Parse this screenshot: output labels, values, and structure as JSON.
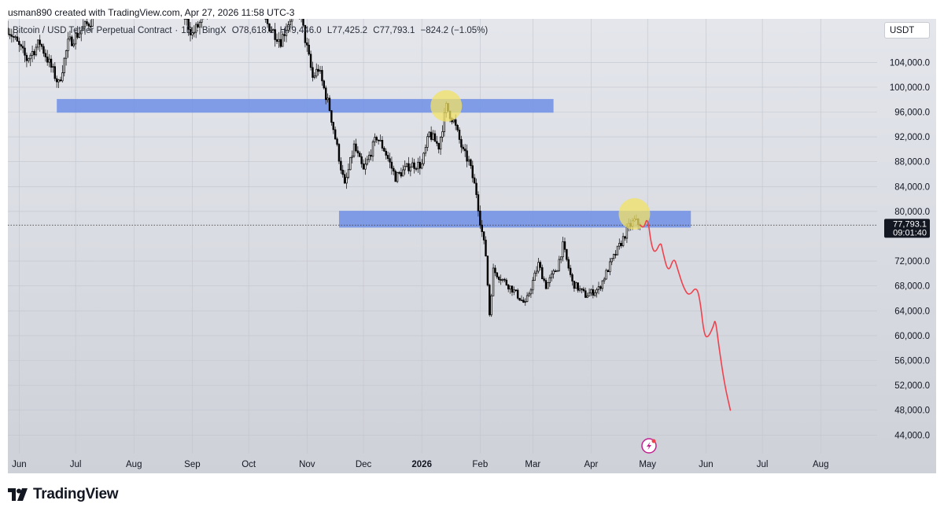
{
  "credit": "usman890 created with TradingView.com, Apr 27, 2026 11:58 UTC-3",
  "symbol": {
    "name": "Bitcoin / USD Tether Perpetual Contract",
    "interval": "1D",
    "exchange": "BingX",
    "open": "O78,618.1",
    "high": "H79,446.0",
    "low": "L77,425.2",
    "close": "C77,793.1",
    "change": "−824.2 (−1.05%)"
  },
  "unit_button": "USDT",
  "price_label": {
    "price": "77,793.1",
    "countdown": "09:01:40",
    "value": 77793.1
  },
  "logo_text": "TradingView",
  "colors": {
    "zone": "#6e8fe6",
    "highlight": "#f2e264",
    "forecast": "#f0424d",
    "candle_up": "#ffffff",
    "candle_down": "#000000",
    "wick": "#202020",
    "badge": "#131722"
  },
  "icons": {
    "alert": "lightning-bolt-icon",
    "logo": "tradingview-logo-icon"
  },
  "chart_data": {
    "type": "candlestick",
    "y_axis": {
      "ticks": [
        104000,
        100000,
        96000,
        92000,
        88000,
        84000,
        80000,
        72000,
        68000,
        64000,
        60000,
        56000,
        52000,
        48000,
        44000
      ],
      "tick_labels": [
        "104,000.0",
        "100,000.0",
        "96,000.0",
        "92,000.0",
        "88,000.0",
        "84,000.0",
        "80,000.0",
        "72,000.0",
        "68,000.0",
        "64,000.0",
        "60,000.0",
        "56,000.0",
        "52,000.0",
        "48,000.0",
        "44,000.0"
      ],
      "range": [
        41000,
        111000
      ]
    },
    "x_axis": {
      "range": [
        "2025-05-26",
        "2026-08-31"
      ],
      "ticks": [
        {
          "date": "2025-06-01",
          "label": "Jun",
          "bold": false
        },
        {
          "date": "2025-07-01",
          "label": "Jul",
          "bold": false
        },
        {
          "date": "2025-08-01",
          "label": "Aug",
          "bold": false
        },
        {
          "date": "2025-09-01",
          "label": "Sep",
          "bold": false
        },
        {
          "date": "2025-10-01",
          "label": "Oct",
          "bold": false
        },
        {
          "date": "2025-11-01",
          "label": "Nov",
          "bold": false
        },
        {
          "date": "2025-12-01",
          "label": "Dec",
          "bold": false
        },
        {
          "date": "2026-01-01",
          "label": "2026",
          "bold": true
        },
        {
          "date": "2026-02-01",
          "label": "Feb",
          "bold": false
        },
        {
          "date": "2026-03-01",
          "label": "Mar",
          "bold": false
        },
        {
          "date": "2026-04-01",
          "label": "Apr",
          "bold": false
        },
        {
          "date": "2026-05-01",
          "label": "May",
          "bold": false
        },
        {
          "date": "2026-06-01",
          "label": "Jun",
          "bold": false
        },
        {
          "date": "2026-07-01",
          "label": "Jul",
          "bold": false
        },
        {
          "date": "2026-08-01",
          "label": "Aug",
          "bold": false
        }
      ]
    },
    "zones": [
      {
        "from": "2025-06-21",
        "to": "2026-03-12",
        "low": 95900,
        "high": 98100
      },
      {
        "from": "2025-11-18",
        "to": "2026-05-24",
        "low": 77400,
        "high": 80100
      }
    ],
    "highlights": [
      {
        "date": "2026-01-14",
        "price": 97000
      },
      {
        "date": "2026-04-24",
        "price": 79600
      }
    ],
    "last_price_line": 77793.1,
    "close_path": [
      {
        "date": "2025-05-26",
        "price": 109500
      },
      {
        "date": "2025-06-05",
        "price": 104500
      },
      {
        "date": "2025-06-12",
        "price": 107200
      },
      {
        "date": "2025-06-22",
        "price": 100500
      },
      {
        "date": "2025-06-27",
        "price": 107000
      },
      {
        "date": "2025-07-10",
        "price": 111000
      },
      {
        "date": "2025-07-14",
        "price": 118000
      },
      {
        "date": "2025-08-14",
        "price": 121000
      },
      {
        "date": "2025-09-01",
        "price": 108500
      },
      {
        "date": "2025-09-18",
        "price": 116000
      },
      {
        "date": "2025-10-06",
        "price": 123500
      },
      {
        "date": "2025-10-10",
        "price": 110500
      },
      {
        "date": "2025-10-18",
        "price": 107500
      },
      {
        "date": "2025-10-27",
        "price": 114000
      },
      {
        "date": "2025-11-04",
        "price": 101500
      },
      {
        "date": "2025-11-07",
        "price": 103000
      },
      {
        "date": "2025-11-13",
        "price": 96500
      },
      {
        "date": "2025-11-21",
        "price": 84000
      },
      {
        "date": "2025-11-26",
        "price": 90500
      },
      {
        "date": "2025-12-01",
        "price": 86500
      },
      {
        "date": "2025-12-08",
        "price": 92000
      },
      {
        "date": "2025-12-12",
        "price": 90000
      },
      {
        "date": "2025-12-18",
        "price": 85500
      },
      {
        "date": "2025-12-26",
        "price": 87500
      },
      {
        "date": "2026-01-01",
        "price": 87500
      },
      {
        "date": "2026-01-05",
        "price": 92500
      },
      {
        "date": "2026-01-10",
        "price": 90500
      },
      {
        "date": "2026-01-14",
        "price": 96800
      },
      {
        "date": "2026-01-18",
        "price": 94500
      },
      {
        "date": "2026-01-23",
        "price": 89500
      },
      {
        "date": "2026-01-26",
        "price": 88000
      },
      {
        "date": "2026-01-30",
        "price": 83000
      },
      {
        "date": "2026-02-01",
        "price": 78500
      },
      {
        "date": "2026-02-04",
        "price": 73000
      },
      {
        "date": "2026-02-06",
        "price": 63500
      },
      {
        "date": "2026-02-08",
        "price": 70500
      },
      {
        "date": "2026-02-13",
        "price": 69000
      },
      {
        "date": "2026-02-18",
        "price": 67500
      },
      {
        "date": "2026-02-25",
        "price": 65000
      },
      {
        "date": "2026-03-04",
        "price": 71500
      },
      {
        "date": "2026-03-08",
        "price": 68000
      },
      {
        "date": "2026-03-14",
        "price": 71000
      },
      {
        "date": "2026-03-17",
        "price": 74500
      },
      {
        "date": "2026-03-22",
        "price": 68500
      },
      {
        "date": "2026-03-29",
        "price": 66500
      },
      {
        "date": "2026-04-05",
        "price": 67500
      },
      {
        "date": "2026-04-12",
        "price": 72000
      },
      {
        "date": "2026-04-17",
        "price": 75000
      },
      {
        "date": "2026-04-21",
        "price": 77500
      },
      {
        "date": "2026-04-24",
        "price": 78500
      },
      {
        "date": "2026-04-27",
        "price": 77793.1
      }
    ],
    "forecast_path": [
      {
        "date": "2026-04-27",
        "price": 77800
      },
      {
        "date": "2026-04-29",
        "price": 77300
      },
      {
        "date": "2026-05-01",
        "price": 79200
      },
      {
        "date": "2026-05-03",
        "price": 74500
      },
      {
        "date": "2026-05-05",
        "price": 73200
      },
      {
        "date": "2026-05-08",
        "price": 75200
      },
      {
        "date": "2026-05-09",
        "price": 73600
      },
      {
        "date": "2026-05-12",
        "price": 70000
      },
      {
        "date": "2026-05-15",
        "price": 72700
      },
      {
        "date": "2026-05-17",
        "price": 70700
      },
      {
        "date": "2026-05-20",
        "price": 67800
      },
      {
        "date": "2026-05-23",
        "price": 66300
      },
      {
        "date": "2026-05-27",
        "price": 68000
      },
      {
        "date": "2026-05-29",
        "price": 65500
      },
      {
        "date": "2026-05-31",
        "price": 60200
      },
      {
        "date": "2026-06-02",
        "price": 59600
      },
      {
        "date": "2026-06-05",
        "price": 61500
      },
      {
        "date": "2026-06-06",
        "price": 62800
      },
      {
        "date": "2026-06-08",
        "price": 58000
      },
      {
        "date": "2026-06-11",
        "price": 52000
      },
      {
        "date": "2026-06-14",
        "price": 48000
      }
    ]
  }
}
